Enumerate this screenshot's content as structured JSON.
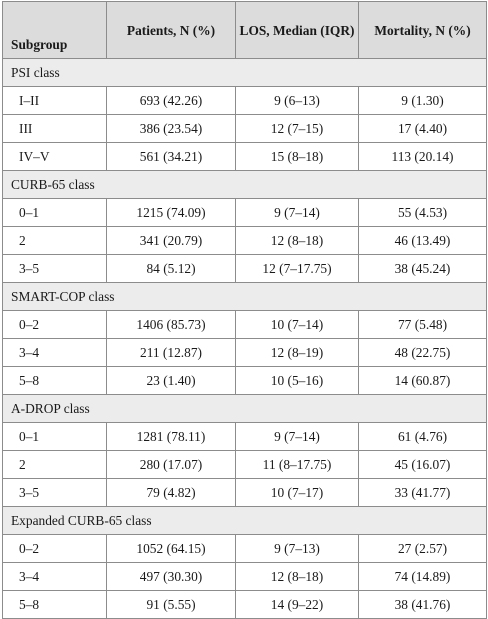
{
  "headers": {
    "subgroup": "Subgroup",
    "patients": "Patients, N (%)",
    "los": "LOS, Median (IQR)",
    "mortality": "Mortality, N (%)"
  },
  "groups": [
    {
      "title": "PSI class",
      "rows": [
        [
          "I–II",
          "693 (42.26)",
          "9 (6–13)",
          "9 (1.30)"
        ],
        [
          "III",
          "386 (23.54)",
          "12 (7–15)",
          "17 (4.40)"
        ],
        [
          "IV–V",
          "561 (34.21)",
          "15 (8–18)",
          "113 (20.14)"
        ]
      ]
    },
    {
      "title": "CURB-65 class",
      "rows": [
        [
          "0–1",
          "1215 (74.09)",
          "9 (7–14)",
          "55 (4.53)"
        ],
        [
          "2",
          "341 (20.79)",
          "12 (8–18)",
          "46 (13.49)"
        ],
        [
          "3–5",
          "84 (5.12)",
          "12 (7–17.75)",
          "38 (45.24)"
        ]
      ]
    },
    {
      "title": "SMART-COP class",
      "rows": [
        [
          "0–2",
          "1406 (85.73)",
          "10 (7–14)",
          "77 (5.48)"
        ],
        [
          "3–4",
          "211 (12.87)",
          "12 (8–19)",
          "48 (22.75)"
        ],
        [
          "5–8",
          "23 (1.40)",
          "10 (5–16)",
          "14 (60.87)"
        ]
      ]
    },
    {
      "title": "A-DROP class",
      "rows": [
        [
          "0–1",
          "1281 (78.11)",
          "9 (7–14)",
          "61 (4.76)"
        ],
        [
          "2",
          "280 (17.07)",
          "11 (8–17.75)",
          "45 (16.07)"
        ],
        [
          "3–5",
          "79 (4.82)",
          "10 (7–17)",
          "33 (41.77)"
        ]
      ]
    },
    {
      "title": "Expanded CURB-65 class",
      "rows": [
        [
          "0–2",
          "1052 (64.15)",
          "9 (7–13)",
          "27 (2.57)"
        ],
        [
          "3–4",
          "497 (30.30)",
          "12 (8–18)",
          "74 (14.89)"
        ],
        [
          "5–8",
          "91 (5.55)",
          "14 (9–22)",
          "38 (41.76)"
        ]
      ]
    }
  ]
}
